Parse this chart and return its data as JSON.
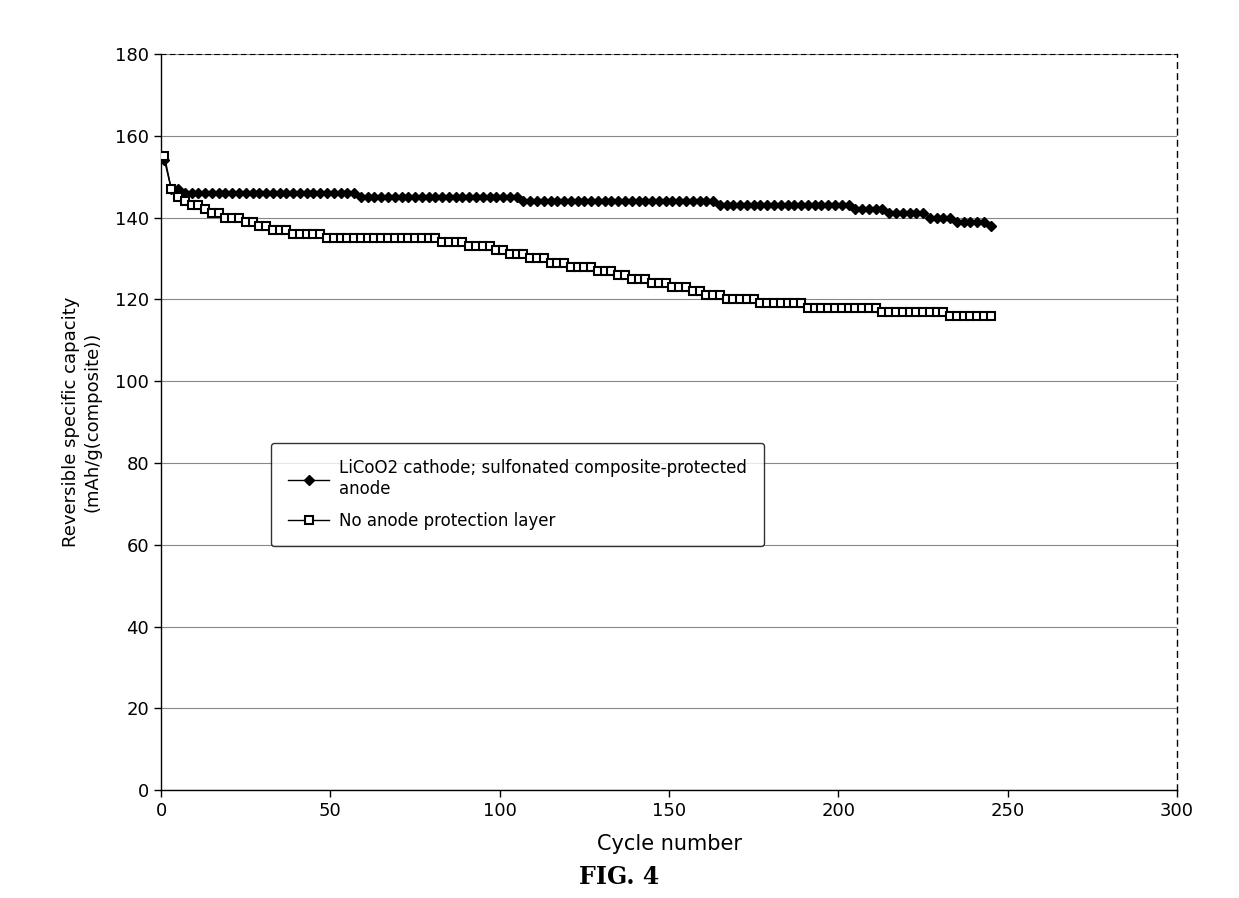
{
  "title": "FIG. 4",
  "xlabel": "Cycle number",
  "ylabel": "Reversible specific capacity\n(mAh/g(composite))",
  "xlim": [
    0,
    300
  ],
  "ylim": [
    0,
    180
  ],
  "xticks": [
    0,
    50,
    100,
    150,
    200,
    250,
    300
  ],
  "yticks": [
    0,
    20,
    40,
    60,
    80,
    100,
    120,
    140,
    160,
    180
  ],
  "legend1_label": "LiCoO2 cathode; sulfonated composite-protected\nanode",
  "legend2_label": "No anode protection layer",
  "series1_x": [
    1,
    3,
    5,
    7,
    9,
    11,
    13,
    15,
    17,
    19,
    21,
    23,
    25,
    27,
    29,
    31,
    33,
    35,
    37,
    39,
    41,
    43,
    45,
    47,
    49,
    51,
    53,
    55,
    57,
    59,
    61,
    63,
    65,
    67,
    69,
    71,
    73,
    75,
    77,
    79,
    81,
    83,
    85,
    87,
    89,
    91,
    93,
    95,
    97,
    99,
    101,
    103,
    105,
    107,
    109,
    111,
    113,
    115,
    117,
    119,
    121,
    123,
    125,
    127,
    129,
    131,
    133,
    135,
    137,
    139,
    141,
    143,
    145,
    147,
    149,
    151,
    153,
    155,
    157,
    159,
    161,
    163,
    165,
    167,
    169,
    171,
    173,
    175,
    177,
    179,
    181,
    183,
    185,
    187,
    189,
    191,
    193,
    195,
    197,
    199,
    201,
    203,
    205,
    207,
    209,
    211,
    213,
    215,
    217,
    219,
    221,
    223,
    225,
    227,
    229,
    231,
    233,
    235,
    237,
    239,
    241,
    243,
    245
  ],
  "series1_y": [
    154,
    147,
    147,
    146,
    146,
    146,
    146,
    146,
    146,
    146,
    146,
    146,
    146,
    146,
    146,
    146,
    146,
    146,
    146,
    146,
    146,
    146,
    146,
    146,
    146,
    146,
    146,
    146,
    146,
    145,
    145,
    145,
    145,
    145,
    145,
    145,
    145,
    145,
    145,
    145,
    145,
    145,
    145,
    145,
    145,
    145,
    145,
    145,
    145,
    145,
    145,
    145,
    145,
    144,
    144,
    144,
    144,
    144,
    144,
    144,
    144,
    144,
    144,
    144,
    144,
    144,
    144,
    144,
    144,
    144,
    144,
    144,
    144,
    144,
    144,
    144,
    144,
    144,
    144,
    144,
    144,
    144,
    143,
    143,
    143,
    143,
    143,
    143,
    143,
    143,
    143,
    143,
    143,
    143,
    143,
    143,
    143,
    143,
    143,
    143,
    143,
    143,
    142,
    142,
    142,
    142,
    142,
    141,
    141,
    141,
    141,
    141,
    141,
    140,
    140,
    140,
    140,
    139,
    139,
    139,
    139,
    139,
    138
  ],
  "series2_x": [
    1,
    3,
    5,
    7,
    9,
    11,
    13,
    15,
    17,
    19,
    21,
    23,
    25,
    27,
    29,
    31,
    33,
    35,
    37,
    39,
    41,
    43,
    45,
    47,
    49,
    51,
    53,
    55,
    57,
    59,
    61,
    63,
    65,
    67,
    69,
    71,
    73,
    75,
    77,
    79,
    81,
    83,
    85,
    87,
    89,
    91,
    93,
    95,
    97,
    99,
    101,
    103,
    105,
    107,
    109,
    111,
    113,
    115,
    117,
    119,
    121,
    123,
    125,
    127,
    129,
    131,
    133,
    135,
    137,
    139,
    141,
    143,
    145,
    147,
    149,
    151,
    153,
    155,
    157,
    159,
    161,
    163,
    165,
    167,
    169,
    171,
    173,
    175,
    177,
    179,
    181,
    183,
    185,
    187,
    189,
    191,
    193,
    195,
    197,
    199,
    201,
    203,
    205,
    207,
    209,
    211,
    213,
    215,
    217,
    219,
    221,
    223,
    225,
    227,
    229,
    231,
    233,
    235,
    237,
    239,
    241,
    243,
    245
  ],
  "series2_y": [
    155,
    147,
    145,
    144,
    143,
    143,
    142,
    141,
    141,
    140,
    140,
    140,
    139,
    139,
    138,
    138,
    137,
    137,
    137,
    136,
    136,
    136,
    136,
    136,
    135,
    135,
    135,
    135,
    135,
    135,
    135,
    135,
    135,
    135,
    135,
    135,
    135,
    135,
    135,
    135,
    135,
    134,
    134,
    134,
    134,
    133,
    133,
    133,
    133,
    132,
    132,
    131,
    131,
    131,
    130,
    130,
    130,
    129,
    129,
    129,
    128,
    128,
    128,
    128,
    127,
    127,
    127,
    126,
    126,
    125,
    125,
    125,
    124,
    124,
    124,
    123,
    123,
    123,
    122,
    122,
    121,
    121,
    121,
    120,
    120,
    120,
    120,
    120,
    119,
    119,
    119,
    119,
    119,
    119,
    119,
    118,
    118,
    118,
    118,
    118,
    118,
    118,
    118,
    118,
    118,
    118,
    117,
    117,
    117,
    117,
    117,
    117,
    117,
    117,
    117,
    117,
    116,
    116,
    116,
    116,
    116,
    116,
    116
  ],
  "line_color": "#000000",
  "bg_color": "#ffffff",
  "grid_color": "#888888",
  "fig_caption": "FIG. 4"
}
